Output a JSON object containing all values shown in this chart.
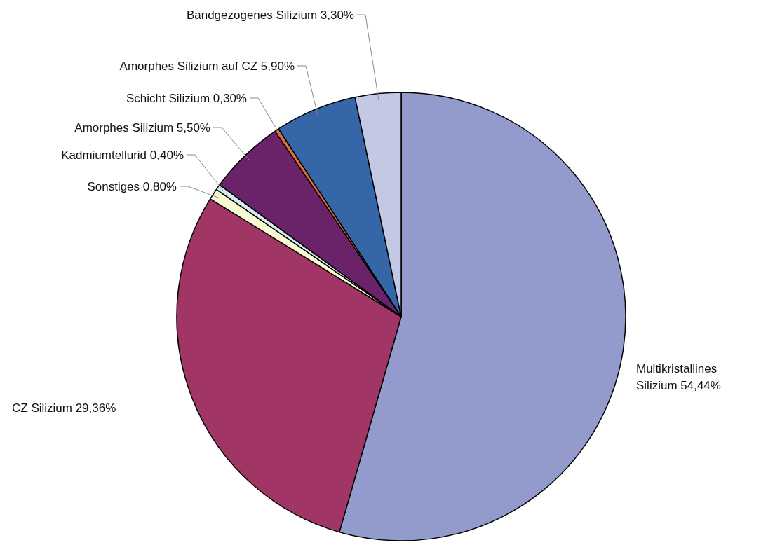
{
  "chart_data": {
    "type": "pie",
    "categories": [
      "Multikristallines Silizium",
      "CZ Silizium",
      "Sonstiges",
      "Kadmiumtellurid",
      "Amorphes Silizium",
      "Schicht Silizium",
      "Amorphes Silizium auf CZ",
      "Bandgezogenes Silizium"
    ],
    "values": [
      54.44,
      29.36,
      0.8,
      0.4,
      5.5,
      0.3,
      5.9,
      3.3
    ],
    "value_labels": [
      "54,44%",
      "29,36%",
      "0,80%",
      "0,40%",
      "5,50%",
      "0,30%",
      "5,90%",
      "3,30%"
    ],
    "colors": [
      "#929bcb",
      "#a03566",
      "#fafad2",
      "#d5eaf0",
      "#6a2268",
      "#e06a3a",
      "#3466a8",
      "#c3c8e4"
    ]
  }
}
